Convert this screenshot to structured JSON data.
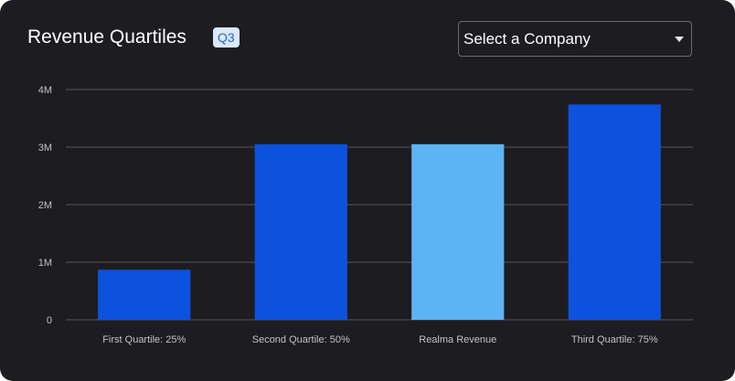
{
  "header": {
    "title": "Revenue Quartiles",
    "badge": "Q3"
  },
  "company_select": {
    "value": "Select a Company",
    "caret_icon": "caret-down-icon"
  },
  "colors": {
    "quartile_bar": "#0d52de",
    "company_bar": "#5db4f4",
    "grid": "#55555b",
    "background": "#1d1d21"
  },
  "chart_data": {
    "type": "bar",
    "categories": [
      "First Quartile: 25%",
      "Second Quartile: 50%",
      "Realma Revenue",
      "Third Quartile: 75%"
    ],
    "values": [
      870000,
      3050000,
      3050000,
      3740000
    ],
    "highlight_index": 2,
    "y_ticks": [
      0,
      1000000,
      2000000,
      3000000,
      4000000
    ],
    "y_tick_labels": [
      "0",
      "1M",
      "2M",
      "3M",
      "4M"
    ],
    "ylim": [
      0,
      4000000
    ],
    "grid": true,
    "legend": "none",
    "title": "",
    "xlabel": "",
    "ylabel": ""
  }
}
